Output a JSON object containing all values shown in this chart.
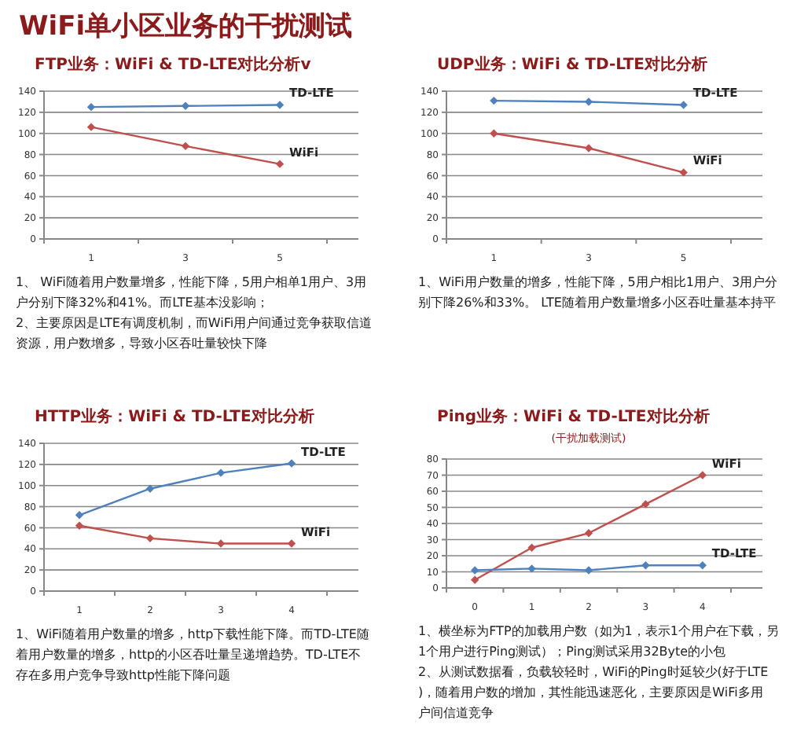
{
  "chart_data": [
    {
      "type": "other",
      "title": "WiFi单小区业务的干扰测试"
    },
    {
      "type": "line",
      "title": "FTP业务：WiFi & TD-LTE对比分析v",
      "categories": [
        "1",
        "3",
        "5"
      ],
      "ylim": [
        0,
        140
      ],
      "yticks": [
        0,
        20,
        40,
        60,
        80,
        100,
        120,
        140
      ],
      "grid": "y",
      "marker": "diamond",
      "legend": false,
      "series": [
        {
          "name": "TD-LTE",
          "color": "#4f81bd",
          "values": [
            125,
            126,
            127
          ]
        },
        {
          "name": "WiFi",
          "color": "#c0504d",
          "values": [
            106,
            88,
            71
          ]
        }
      ],
      "annotations": [
        "1、 WiFi随着用户数量增多，性能下降，5用户相单1用户、3用户分别下降32%和41%。而LTE基本没影响；",
        "2、主要原因是LTE有调度机制，而WiFi用户间通过竞争获取信道资源，用户数增多，导致小区吞吐量较快下降"
      ]
    },
    {
      "type": "line",
      "title": "UDP业务：WiFi & TD-LTE对比分析",
      "categories": [
        "1",
        "3",
        "5"
      ],
      "ylim": [
        0,
        140
      ],
      "yticks": [
        0,
        20,
        40,
        60,
        80,
        100,
        120,
        140
      ],
      "grid": "y",
      "marker": "diamond",
      "legend": false,
      "series": [
        {
          "name": "TD-LTE",
          "color": "#4f81bd",
          "values": [
            131,
            130,
            127
          ]
        },
        {
          "name": "WiFi",
          "color": "#c0504d",
          "values": [
            100,
            86,
            63
          ]
        }
      ],
      "annotations": [
        "1、WiFi用户数量的增多，性能下降，5用户相比1用户、3用户分别下降26%和33%。 LTE随着用户数量增多小区吞吐量基本持平"
      ]
    },
    {
      "type": "line",
      "title": "HTTP业务：WiFi & TD-LTE对比分析",
      "categories": [
        "1",
        "2",
        "3",
        "4"
      ],
      "ylim": [
        0,
        140
      ],
      "yticks": [
        0,
        20,
        40,
        60,
        80,
        100,
        120,
        140
      ],
      "grid": "y",
      "marker": "diamond",
      "legend": false,
      "series": [
        {
          "name": "TD-LTE",
          "color": "#4f81bd",
          "values": [
            72,
            97,
            112,
            121
          ]
        },
        {
          "name": "WiFi",
          "color": "#c0504d",
          "values": [
            62,
            50,
            45,
            45
          ]
        }
      ],
      "annotations": [
        "1、WiFi随着用户数量的增多，http下载性能下降。而TD-LTE随着用户数量的增多，http的小区吞吐量呈递增趋势。TD-LTE不存在多用户竞争导致http性能下降问题"
      ]
    },
    {
      "type": "line",
      "title": "Ping业务：WiFi & TD-LTE对比分析",
      "subtitle": "(干扰加载测试)",
      "categories": [
        "0",
        "1",
        "2",
        "3",
        "4"
      ],
      "ylim": [
        0,
        80
      ],
      "yticks": [
        0,
        10,
        20,
        30,
        40,
        50,
        60,
        70,
        80
      ],
      "grid": "y",
      "marker": "diamond",
      "legend": false,
      "series": [
        {
          "name": "WiFi",
          "color": "#c0504d",
          "values": [
            5,
            25,
            34,
            52,
            70
          ]
        },
        {
          "name": "TD-LTE",
          "color": "#4f81bd",
          "values": [
            11,
            12,
            11,
            14,
            14
          ]
        }
      ],
      "annotations": [
        "1、横坐标为FTP的加载用户数（如为1，表示1个用户在下载，另1个用户进行Ping测试）；Ping测试采用32Byte的小包",
        "2、从测试数据看，负载较轻时，WiFi的Ping时延较少(好于LTE)，随着用户数的增加，其性能迅速恶化，主要原因是WiFi多用户间信道竞争"
      ]
    }
  ]
}
